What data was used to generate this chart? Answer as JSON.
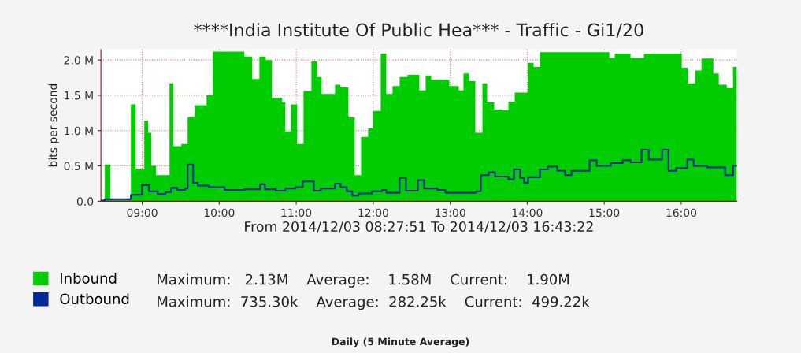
{
  "chart_data": {
    "type": "area",
    "title": "****India Institute Of Public Hea*** - Traffic - Gi1/20",
    "xlabel": "From 2014/12/03 08:27:51 To 2014/12/03 16:43:22",
    "ylabel": "bits per second",
    "xlim": [
      8.464,
      16.723
    ],
    "xticks": [
      {
        "value": 9,
        "label": "09:00"
      },
      {
        "value": 10,
        "label": "10:00"
      },
      {
        "value": 11,
        "label": "11:00"
      },
      {
        "value": 12,
        "label": "12:00"
      },
      {
        "value": 13,
        "label": "13:00"
      },
      {
        "value": 14,
        "label": "14:00"
      },
      {
        "value": 15,
        "label": "15:00"
      },
      {
        "value": 16,
        "label": "16:00"
      }
    ],
    "ylim": [
      0,
      2.15
    ],
    "yticks": [
      {
        "value": 0,
        "label": "0.0"
      },
      {
        "value": 0.5,
        "label": "0.5 M"
      },
      {
        "value": 1.0,
        "label": "1.0 M"
      },
      {
        "value": 1.5,
        "label": "1.5 M"
      },
      {
        "value": 2.0,
        "label": "2.0 M"
      }
    ],
    "grid": true,
    "legend": "bottom",
    "series": [
      {
        "name": "Inbound",
        "color": "#00cc00",
        "x": [
          8.464,
          8.515,
          8.587,
          8.853,
          8.915,
          9.027,
          9.078,
          9.119,
          9.181,
          9.355,
          9.406,
          9.508,
          9.59,
          9.682,
          9.836,
          9.918,
          10.327,
          10.429,
          10.522,
          10.603,
          10.685,
          10.818,
          10.859,
          10.931,
          11.013,
          11.095,
          11.197,
          11.269,
          11.33,
          11.504,
          11.576,
          11.678,
          11.76,
          11.842,
          11.934,
          11.995,
          12.098,
          12.169,
          12.251,
          12.343,
          12.446,
          12.599,
          12.681,
          12.753,
          12.988,
          13.111,
          13.172,
          13.244,
          13.326,
          13.418,
          13.479,
          13.571,
          13.674,
          13.756,
          13.838,
          14.011,
          14.083,
          14.165,
          15.066,
          15.137,
          15.342,
          15.516,
          16.007,
          16.089,
          16.181,
          16.263,
          16.417,
          16.488,
          16.591,
          16.673,
          16.723
        ],
        "values": [
          0.02,
          0.52,
          0.03,
          1.37,
          0.46,
          1.14,
          0.97,
          0.5,
          0.37,
          1.67,
          0.78,
          0.81,
          1.19,
          1.36,
          1.5,
          2.12,
          2.05,
          1.73,
          2.05,
          2.0,
          1.46,
          1.4,
          0.99,
          1.37,
          0.81,
          1.56,
          1.98,
          1.76,
          1.52,
          1.65,
          1.61,
          1.19,
          0.37,
          0.91,
          1.03,
          1.28,
          2.09,
          1.52,
          1.63,
          1.76,
          1.79,
          1.57,
          1.78,
          1.72,
          1.63,
          1.57,
          1.81,
          1.7,
          0.97,
          1.67,
          1.4,
          1.3,
          1.29,
          1.41,
          1.54,
          1.96,
          1.9,
          2.11,
          2.03,
          2.09,
          2.03,
          2.09,
          1.89,
          1.67,
          1.85,
          2.02,
          1.81,
          1.65,
          1.6,
          1.9,
          1.9
        ]
      },
      {
        "name": "Outbound",
        "type": "step",
        "color": "#002a97",
        "x": [
          8.464,
          8.515,
          8.853,
          8.996,
          9.088,
          9.201,
          9.303,
          9.375,
          9.457,
          9.559,
          9.59,
          9.662,
          9.723,
          9.866,
          10.071,
          10.327,
          10.532,
          10.593,
          10.736,
          10.859,
          10.992,
          11.084,
          11.228,
          11.32,
          11.504,
          11.576,
          11.657,
          11.729,
          11.811,
          11.985,
          12.118,
          12.169,
          12.343,
          12.425,
          12.579,
          12.66,
          12.834,
          12.937,
          13.336,
          13.397,
          13.5,
          13.582,
          13.756,
          13.827,
          13.909,
          13.96,
          14.011,
          14.165,
          14.267,
          14.39,
          14.493,
          14.575,
          14.81,
          14.902,
          15.086,
          15.24,
          15.342,
          15.485,
          15.578,
          15.752,
          15.834,
          15.936,
          16.079,
          16.161,
          16.335,
          16.57,
          16.673,
          16.723
        ],
        "values": [
          0.01,
          0.03,
          0.09,
          0.23,
          0.14,
          0.1,
          0.13,
          0.19,
          0.16,
          0.18,
          0.52,
          0.26,
          0.22,
          0.2,
          0.16,
          0.17,
          0.24,
          0.17,
          0.15,
          0.18,
          0.2,
          0.28,
          0.15,
          0.18,
          0.25,
          0.2,
          0.14,
          0.08,
          0.11,
          0.14,
          0.16,
          0.12,
          0.33,
          0.15,
          0.3,
          0.18,
          0.16,
          0.12,
          0.14,
          0.37,
          0.41,
          0.35,
          0.31,
          0.45,
          0.33,
          0.26,
          0.34,
          0.45,
          0.49,
          0.43,
          0.37,
          0.43,
          0.58,
          0.5,
          0.54,
          0.58,
          0.55,
          0.73,
          0.59,
          0.73,
          0.43,
          0.47,
          0.59,
          0.5,
          0.48,
          0.37,
          0.5,
          0.5
        ]
      }
    ],
    "annotations": [
      "Maximum:   2.13M    Average:    1.58M    Current:    1.90M",
      "Maximum:  735.30k    Average:  282.25k    Current:  499.22k",
      "Daily (5 Minute Average)"
    ]
  }
}
